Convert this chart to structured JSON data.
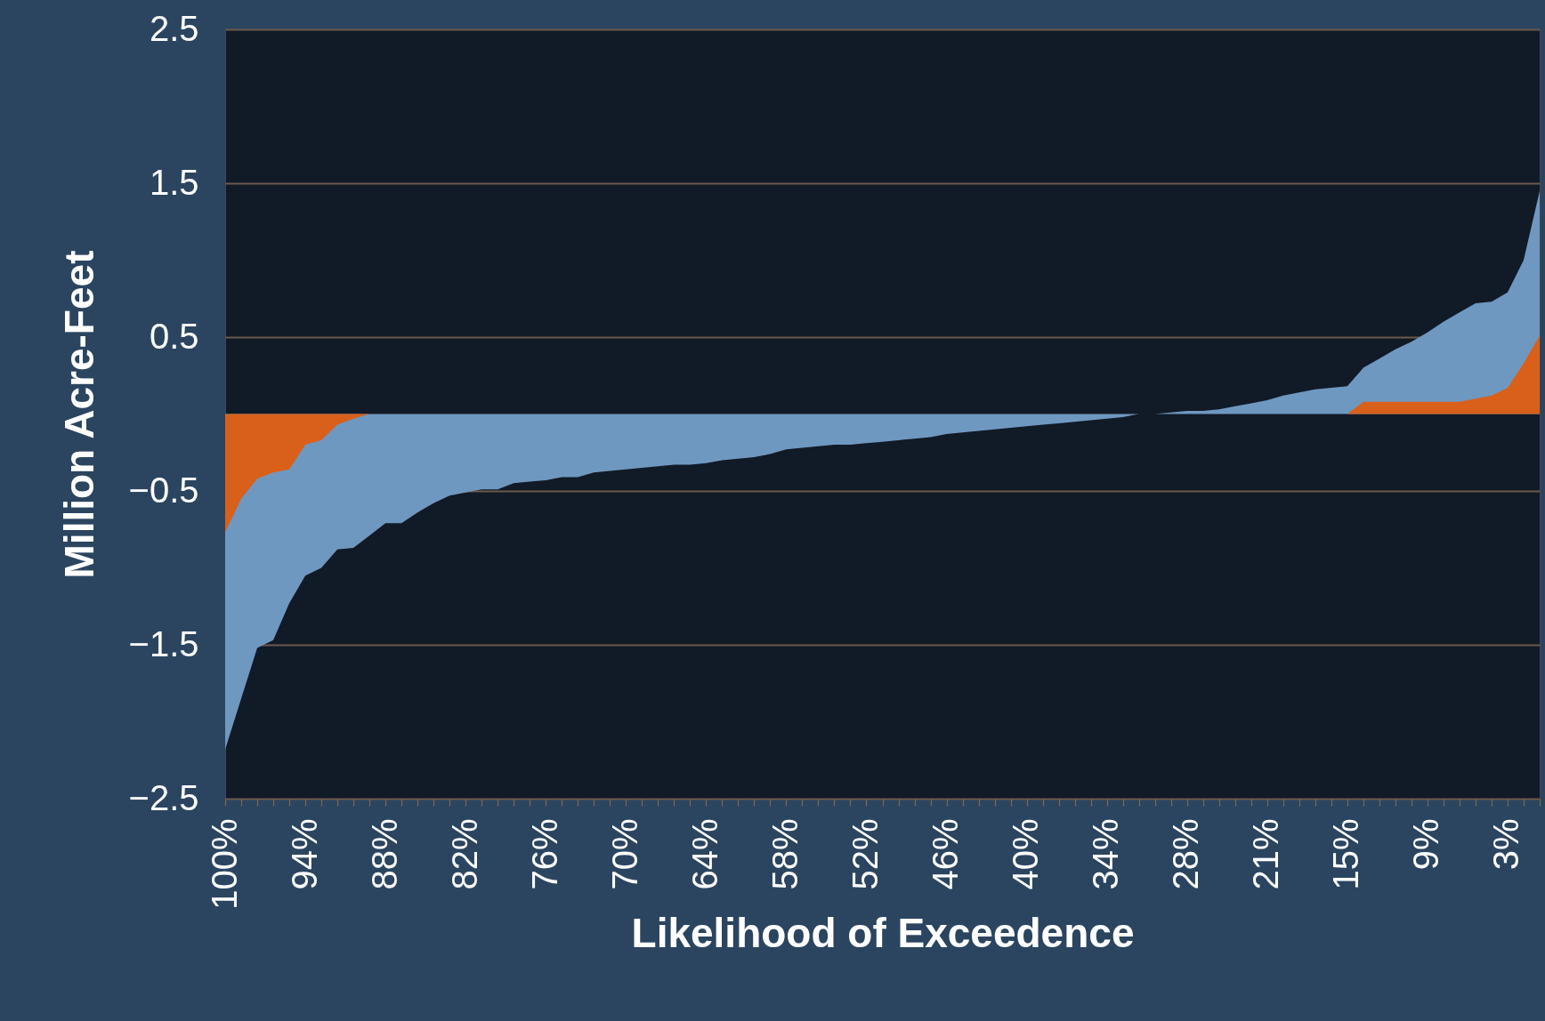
{
  "chart_data": {
    "type": "area",
    "xlabel": "Likelihood of Exceedence",
    "ylabel": "Million Acre-Feet",
    "categories": [
      "100%",
      null,
      null,
      null,
      null,
      "94%",
      null,
      null,
      null,
      null,
      "88%",
      null,
      null,
      null,
      null,
      "82%",
      null,
      null,
      null,
      null,
      "76%",
      null,
      null,
      null,
      null,
      "70%",
      null,
      null,
      null,
      null,
      "64%",
      null,
      null,
      null,
      null,
      "58%",
      null,
      null,
      null,
      null,
      "52%",
      null,
      null,
      null,
      null,
      "46%",
      null,
      null,
      null,
      null,
      "40%",
      null,
      null,
      null,
      null,
      "34%",
      null,
      null,
      null,
      null,
      "28%",
      null,
      null,
      null,
      null,
      "21%",
      null,
      null,
      null,
      null,
      "15%",
      null,
      null,
      null,
      null,
      "9%",
      null,
      null,
      null,
      null,
      "3%",
      null,
      null
    ],
    "series": [
      {
        "color": "#6f98c0",
        "values": [
          -2.18,
          -1.85,
          -1.52,
          -1.47,
          -1.23,
          -1.05,
          -1.0,
          -0.88,
          -0.87,
          -0.79,
          -0.71,
          -0.71,
          -0.64,
          -0.58,
          -0.53,
          -0.51,
          -0.49,
          -0.49,
          -0.45,
          -0.44,
          -0.43,
          -0.41,
          -0.41,
          -0.38,
          -0.37,
          -0.36,
          -0.35,
          -0.34,
          -0.33,
          -0.33,
          -0.32,
          -0.3,
          -0.29,
          -0.28,
          -0.26,
          -0.23,
          -0.22,
          -0.21,
          -0.2,
          -0.2,
          -0.19,
          -0.18,
          -0.17,
          -0.16,
          -0.15,
          -0.13,
          -0.12,
          -0.11,
          -0.1,
          -0.09,
          -0.08,
          -0.07,
          -0.06,
          -0.05,
          -0.04,
          -0.03,
          -0.02,
          0,
          0,
          0.01,
          0.02,
          0.02,
          0.03,
          0.05,
          0.07,
          0.09,
          0.12,
          0.14,
          0.16,
          0.17,
          0.18,
          0.3,
          0.36,
          0.42,
          0.47,
          0.53,
          0.6,
          0.66,
          0.72,
          0.73,
          0.79,
          1.0,
          1.45
        ]
      },
      {
        "color": "#d9601a",
        "values": [
          -0.77,
          -0.55,
          -0.42,
          -0.38,
          -0.36,
          -0.2,
          -0.17,
          -0.07,
          -0.03,
          0,
          0,
          0,
          0,
          0,
          0,
          0,
          0,
          0,
          0,
          0,
          0,
          0,
          0,
          0,
          0,
          0,
          0,
          0,
          0,
          0,
          0,
          0,
          0,
          0,
          0,
          0,
          0,
          0,
          0,
          0,
          0,
          0,
          0,
          0,
          0,
          0,
          0,
          0,
          0,
          0,
          0,
          0,
          0,
          0,
          0,
          0,
          0,
          0,
          0,
          0,
          0,
          0,
          0,
          0,
          0,
          0,
          0,
          0,
          0,
          0,
          0,
          0.08,
          0.08,
          0.08,
          0.08,
          0.08,
          0.08,
          0.08,
          0.1,
          0.12,
          0.17,
          0.33,
          0.51
        ]
      }
    ],
    "ylim": [
      -2.5,
      2.5
    ],
    "yticks": [
      2.5,
      1.5,
      0.5,
      -0.5,
      -1.5,
      -2.5
    ],
    "grid": "y"
  }
}
